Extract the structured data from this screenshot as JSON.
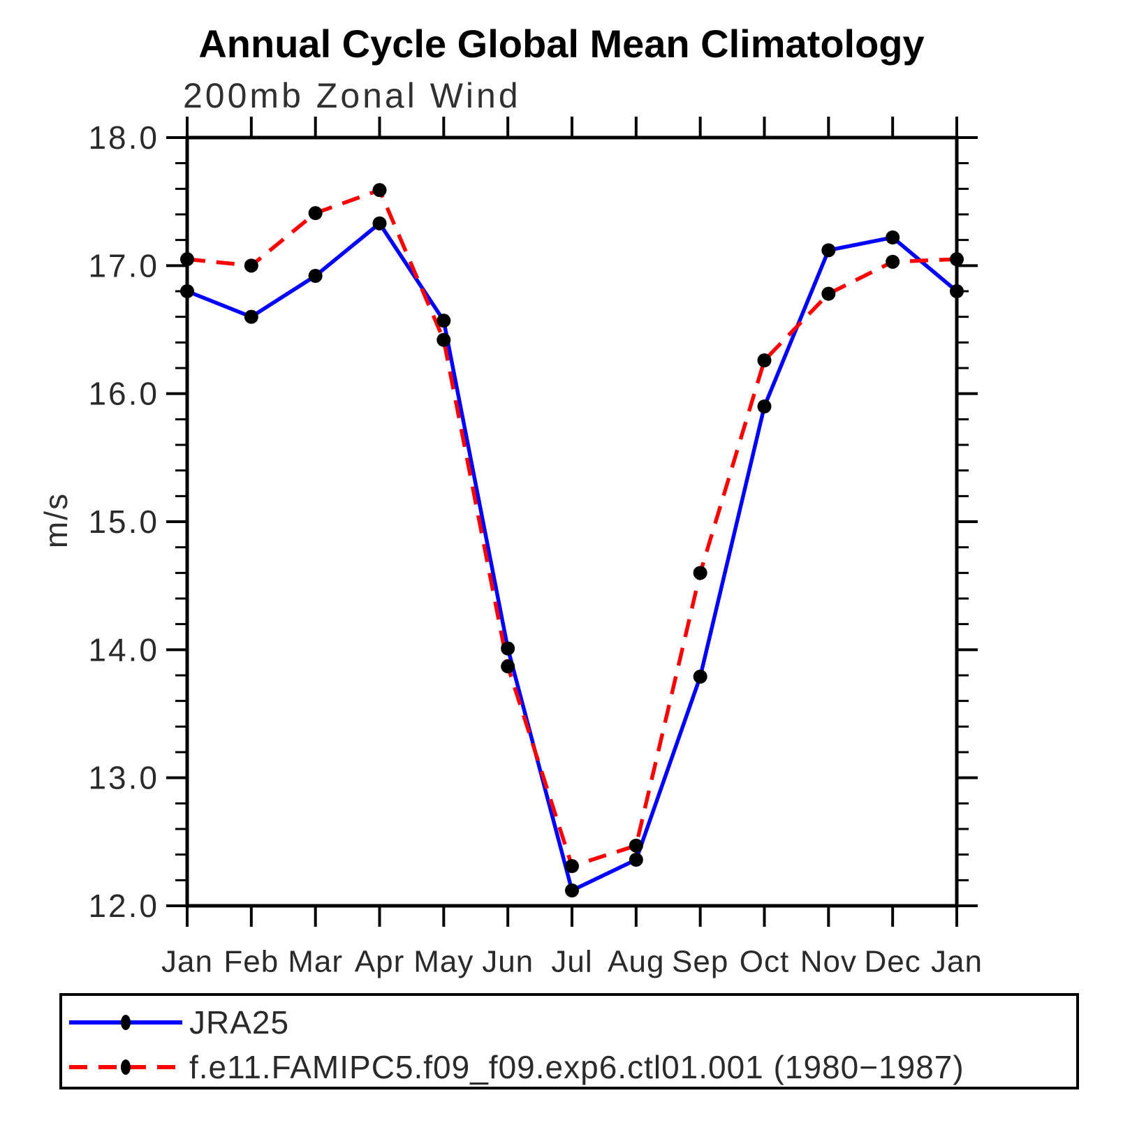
{
  "title": "Annual Cycle Global Mean Climatology",
  "subtitle": "200mb Zonal Wind",
  "ylabel": "m/s",
  "chart_data": {
    "type": "line",
    "categories": [
      "Jan",
      "Feb",
      "Mar",
      "Apr",
      "May",
      "Jun",
      "Jul",
      "Aug",
      "Sep",
      "Oct",
      "Nov",
      "Dec",
      "Jan"
    ],
    "series": [
      {
        "name": "JRA25",
        "color": "#0000ff",
        "dash": "none",
        "marker": "black-filled-circle",
        "marker_color": "#000000",
        "values": [
          16.8,
          16.6,
          16.92,
          17.33,
          16.57,
          14.01,
          12.12,
          12.36,
          13.79,
          15.9,
          17.12,
          17.22,
          16.8
        ]
      },
      {
        "name": "f.e11.FAMIPC5.f09_f09.exp6.ctl01.001 (1980−1987)",
        "color": "#ff0000",
        "dash": "26,16",
        "marker": "black-filled-circle",
        "marker_color": "#000000",
        "values": [
          17.05,
          17.0,
          17.41,
          17.59,
          16.42,
          13.87,
          12.31,
          12.47,
          14.6,
          16.26,
          16.78,
          17.03,
          17.05
        ]
      }
    ],
    "xlabel": "",
    "ylabel": "m/s",
    "ylim": [
      12.0,
      18.0
    ],
    "y_major_step": 1.0,
    "y_minor_step": 0.2,
    "y_tick_labels": [
      "12.0",
      "13.0",
      "14.0",
      "15.0",
      "16.0",
      "17.0",
      "18.0"
    ],
    "grid": false,
    "legend_position": "bottom-left-box",
    "axis_color": "#000000"
  }
}
